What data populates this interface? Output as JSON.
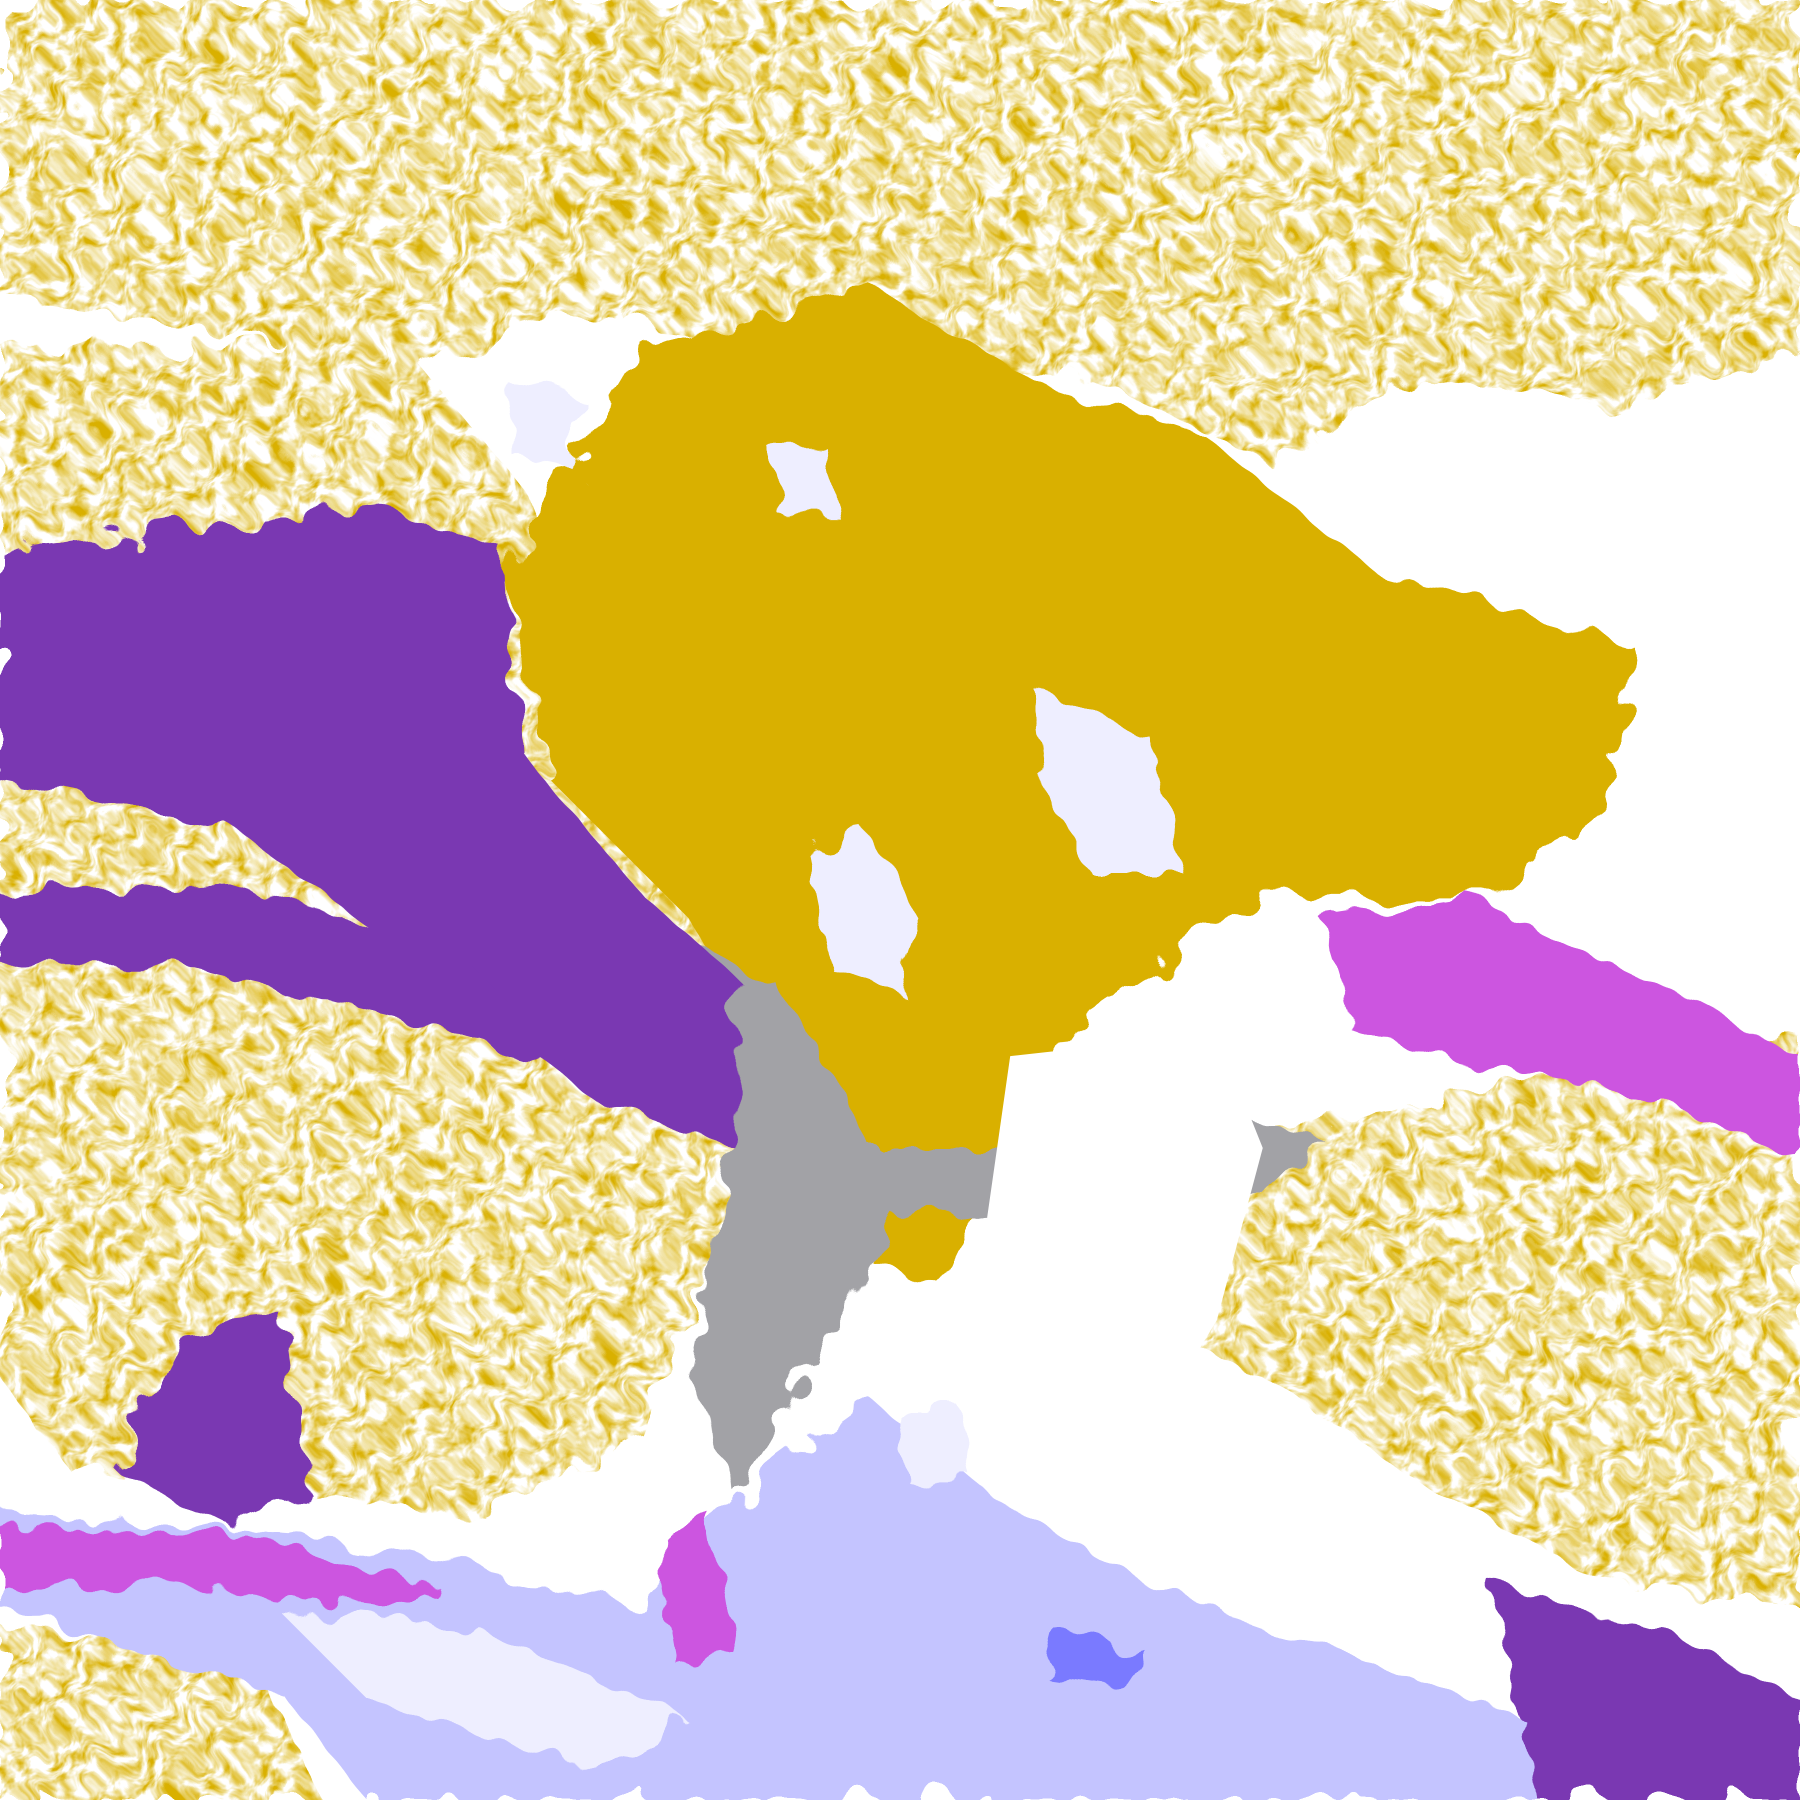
{
  "image": {
    "kind": "classified satellite cloud/land map",
    "palette": {
      "background": "#ffffff",
      "gold": "#d9b000",
      "gold_dark": "#b88a00",
      "purple": "#7a38b2",
      "magenta": "#cc55e0",
      "gray": "#a2a2a6",
      "lavender": "#c4c4ff",
      "pale": "#eeeeff",
      "blue": "#7a7aff"
    }
  }
}
